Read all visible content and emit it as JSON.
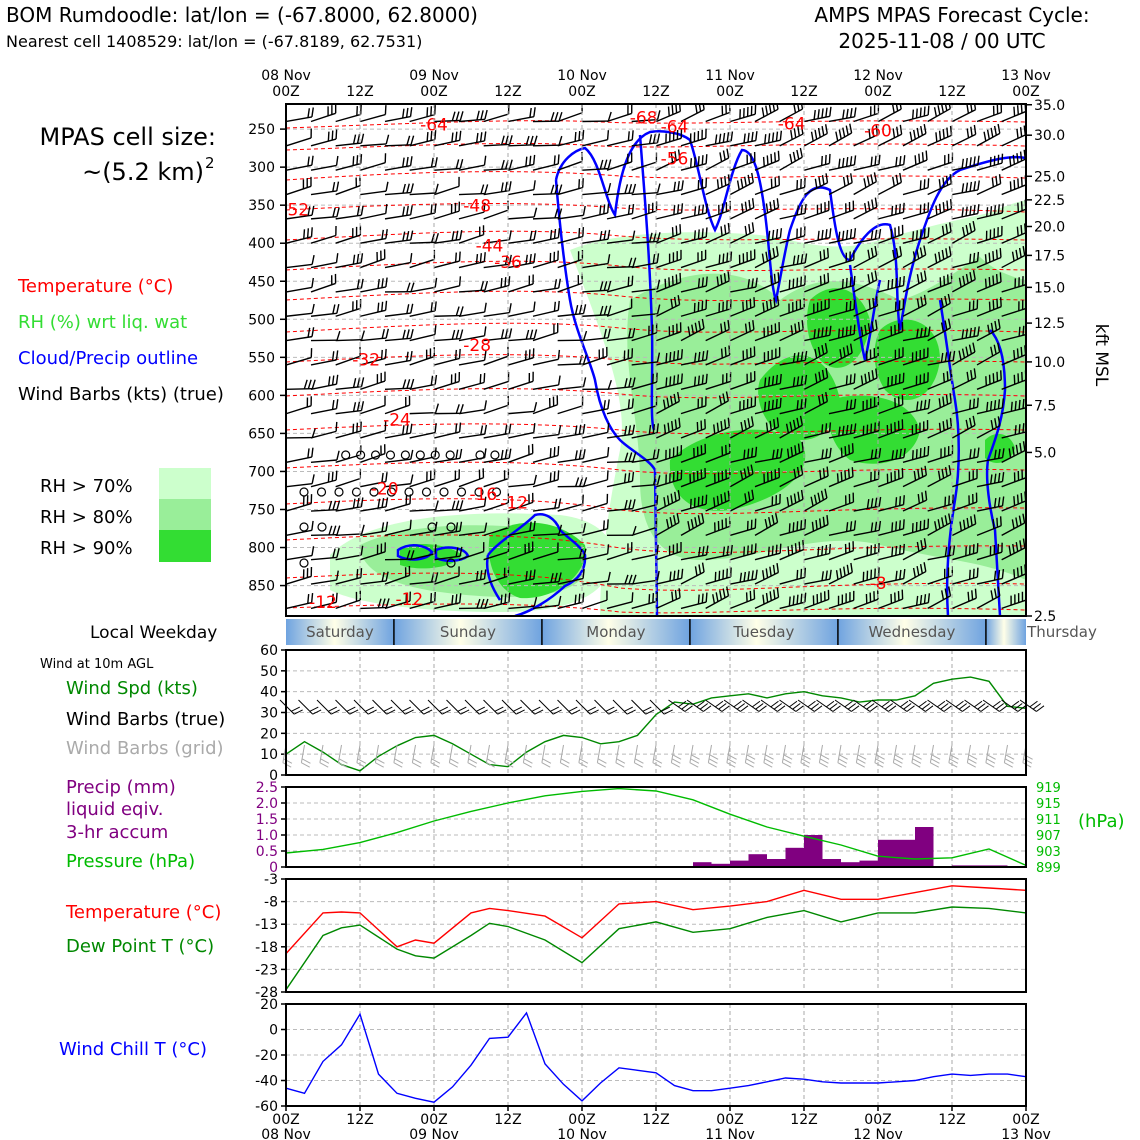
{
  "header": {
    "station_line": "BOM Rumdoodle: lat/lon = (-67.8000, 62.8000)",
    "cell_line": "Nearest cell 1408529: lat/lon = (-67.8189, 62.7531)",
    "cycle_title_1": "AMPS MPAS Forecast Cycle:",
    "cycle_title_2": "2025-11-08 / 00 UTC"
  },
  "cell_size": {
    "line1": "MPAS cell size:",
    "line2": "~(5.2 km)",
    "superscript": "2"
  },
  "upper_legend": {
    "temperature": "Temperature (°C)",
    "rh": "RH (%) wrt liq. wat",
    "cloud": "Cloud/Precip outline",
    "barbs": "Wind Barbs (kts) (true)",
    "rh_levels": [
      "RH > 70%",
      "RH > 80%",
      "RH > 90%"
    ]
  },
  "colors": {
    "temperature": "#ff0000",
    "rh_label": "#33dd33",
    "cloud": "#0000ff",
    "rh70": "#ccffcc",
    "rh80": "#99ee99",
    "rh90": "#33dd33",
    "wind_speed": "#008800",
    "precip": "#800080",
    "pressure": "#00bb00",
    "dewpoint": "#008800",
    "wind_chill": "#0000ff",
    "grid_barb": "#aaaaaa"
  },
  "time_axis": {
    "top_dates": [
      "08 Nov",
      "",
      "09 Nov",
      "",
      "10 Nov",
      "",
      "11 Nov",
      "",
      "12 Nov",
      "",
      "13 Nov"
    ],
    "top_hours": [
      "00Z",
      "12Z",
      "00Z",
      "12Z",
      "00Z",
      "12Z",
      "00Z",
      "12Z",
      "00Z",
      "12Z",
      "00Z"
    ],
    "bottom_hours": [
      "00Z",
      "12Z",
      "00Z",
      "12Z",
      "00Z",
      "12Z",
      "00Z",
      "12Z",
      "00Z",
      "12Z",
      "00Z"
    ],
    "bottom_dates": [
      "08 Nov",
      "",
      "09 Nov",
      "",
      "10 Nov",
      "",
      "11 Nov",
      "",
      "12 Nov",
      "",
      "13 Nov"
    ]
  },
  "weekday_strip": {
    "label": "Local Weekday",
    "days": [
      "Saturday",
      "Sunday",
      "Monday",
      "Tuesday",
      "Wednesday",
      "Thursday"
    ]
  },
  "surface_wind_legend": {
    "title": "Wind at 10m AGL",
    "speed": "Wind Spd (kts)",
    "barbs_true": "Wind Barbs (true)",
    "barbs_grid": "Wind Barbs (grid)"
  },
  "precip_legend": {
    "line1": "Precip (mm)",
    "line2": "liquid eqiv.",
    "line3": "3-hr accum",
    "pressure": "Pressure (hPa)",
    "right_unit": "(hPa)"
  },
  "temp_legend": {
    "temperature": "Temperature (°C)",
    "dewpoint": "Dew Point T (°C)"
  },
  "chill_legend": {
    "wind_chill": "Wind Chill T (°C)"
  },
  "chart_data": [
    {
      "type": "heatmap",
      "panel": "upper-air time-height cross section",
      "x_hours": [
        0,
        120
      ],
      "pressure_ticks": [
        "250",
        "300",
        "350",
        "400",
        "450",
        "500",
        "550",
        "600",
        "650",
        "700",
        "750",
        "800",
        "850"
      ],
      "pressure_values": [
        250,
        300,
        350,
        400,
        450,
        500,
        550,
        600,
        650,
        700,
        750,
        800,
        850
      ],
      "ylim_hpa": [
        890,
        217
      ],
      "right_axis_label": "kft MSL",
      "kft_ticks": [
        "35.0",
        "30.0",
        "25.0",
        "22.5",
        "20.0",
        "17.5",
        "15.0",
        "12.5",
        "10.0",
        "7.5",
        "5.0",
        "2.5"
      ],
      "kft_hpa": [
        218,
        258,
        312,
        343,
        378,
        416,
        458,
        505,
        556,
        613,
        675,
        890
      ],
      "temperature_labels": [
        {
          "text": "-64",
          "hour": 24,
          "hpa": 245
        },
        {
          "text": "-68",
          "hour": 58,
          "hpa": 236
        },
        {
          "text": "-64",
          "hour": 63,
          "hpa": 248
        },
        {
          "text": "-64",
          "hour": 82,
          "hpa": 244
        },
        {
          "text": "-60",
          "hour": 96,
          "hpa": 253
        },
        {
          "text": "-56",
          "hour": 63,
          "hpa": 290
        },
        {
          "text": "-52",
          "hour": 1.5,
          "hpa": 357
        },
        {
          "text": "-48",
          "hour": 31,
          "hpa": 352
        },
        {
          "text": "-44",
          "hour": 33,
          "hpa": 404
        },
        {
          "text": "-36",
          "hour": 36,
          "hpa": 426
        },
        {
          "text": "-32",
          "hour": 13,
          "hpa": 554
        },
        {
          "text": "-28",
          "hour": 31,
          "hpa": 535
        },
        {
          "text": "-24",
          "hour": 18,
          "hpa": 633
        },
        {
          "text": "-20",
          "hour": 16,
          "hpa": 724
        },
        {
          "text": "-16",
          "hour": 32,
          "hpa": 731
        },
        {
          "text": "-12",
          "hour": 37,
          "hpa": 742
        },
        {
          "text": "-12",
          "hour": 6,
          "hpa": 873
        },
        {
          "text": "-12",
          "hour": 20,
          "hpa": 869
        },
        {
          "text": "-8",
          "hour": 96,
          "hpa": 848
        }
      ]
    },
    {
      "type": "line",
      "panel": "surface wind speed",
      "x_hours": [
        0,
        120
      ],
      "ylim": [
        0,
        60
      ],
      "y_ticks": [
        "0",
        "10",
        "20",
        "30",
        "40",
        "50",
        "60"
      ],
      "series": [
        {
          "name": "Wind Spd (kts)",
          "x": [
            0,
            3,
            6,
            9,
            12,
            15,
            18,
            21,
            24,
            27,
            30,
            33,
            36,
            39,
            42,
            45,
            48,
            51,
            54,
            57,
            60,
            63,
            66,
            69,
            72,
            75,
            78,
            81,
            84,
            87,
            90,
            93,
            96,
            99,
            102,
            105,
            108,
            111,
            114,
            117,
            120
          ],
          "values": [
            10,
            16,
            11,
            5,
            2,
            9,
            14,
            18,
            19,
            15,
            10,
            5,
            4,
            11,
            16,
            19,
            18,
            15,
            16,
            19,
            29,
            35,
            34,
            37,
            38,
            39,
            37,
            39,
            40,
            38,
            37,
            35,
            36,
            36,
            38,
            44,
            46,
            47,
            45,
            33,
            32
          ]
        }
      ]
    },
    {
      "type": "bar",
      "panel": "3-hr precipitation and pressure",
      "x_hours": [
        0,
        120
      ],
      "ylim_precip": [
        0,
        2.5
      ],
      "precip_ticks": [
        "0",
        "0.5",
        "1.0",
        "1.5",
        "2.0",
        "2.5"
      ],
      "pressure_ticks": [
        "899",
        "903",
        "907",
        "911",
        "915",
        "919"
      ],
      "ylim_pressure": [
        899,
        919
      ],
      "precip_bars": [
        {
          "hour_start": 66,
          "value": 0.15
        },
        {
          "hour_start": 69,
          "value": 0.1
        },
        {
          "hour_start": 72,
          "value": 0.2
        },
        {
          "hour_start": 75,
          "value": 0.4
        },
        {
          "hour_start": 78,
          "value": 0.25
        },
        {
          "hour_start": 81,
          "value": 0.6
        },
        {
          "hour_start": 84,
          "value": 1.0
        },
        {
          "hour_start": 87,
          "value": 0.25
        },
        {
          "hour_start": 90,
          "value": 0.15
        },
        {
          "hour_start": 93,
          "value": 0.2
        },
        {
          "hour_start": 96,
          "value": 0.85
        },
        {
          "hour_start": 99,
          "value": 0.85
        },
        {
          "hour_start": 102,
          "value": 1.25
        },
        {
          "hour_start": 108,
          "value": 0.05
        },
        {
          "hour_start": 111,
          "value": 0.05
        },
        {
          "hour_start": 114,
          "value": 0.05
        }
      ],
      "pressure_series": {
        "name": "Pressure (hPa)",
        "x": [
          0,
          6,
          12,
          18,
          24,
          30,
          36,
          42,
          48,
          54,
          60,
          66,
          72,
          78,
          84,
          90,
          96,
          102,
          108,
          114,
          120
        ],
        "values": [
          902.5,
          903.4,
          905.1,
          907.6,
          910.5,
          912.9,
          915.0,
          916.8,
          917.9,
          918.6,
          918.0,
          915.8,
          912.2,
          909.0,
          906.7,
          904.5,
          901.7,
          901.0,
          901.3,
          903.5,
          899.4
        ]
      }
    },
    {
      "type": "line",
      "panel": "temperature and dew point",
      "x_hours": [
        0,
        120
      ],
      "ylim": [
        -28,
        -3
      ],
      "y_ticks": [
        "-3",
        "-8",
        "-13",
        "-18",
        "-23",
        "-28"
      ],
      "series": [
        {
          "name": "Temperature (°C)",
          "x": [
            0,
            6,
            9,
            12,
            18,
            21,
            24,
            30,
            33,
            36,
            42,
            48,
            54,
            60,
            66,
            72,
            78,
            84,
            90,
            96,
            102,
            108,
            114,
            120
          ],
          "values": [
            -19.5,
            -10.5,
            -10.3,
            -10.5,
            -18.0,
            -16.5,
            -17.2,
            -10.5,
            -9.5,
            -10.0,
            -11.2,
            -16.0,
            -8.5,
            -8.0,
            -9.8,
            -9.0,
            -8.0,
            -5.5,
            -7.5,
            -7.5,
            -6.0,
            -4.5,
            -5.0,
            -5.5
          ]
        },
        {
          "name": "Dew Point T (°C)",
          "x": [
            0,
            6,
            9,
            12,
            18,
            21,
            24,
            30,
            33,
            36,
            42,
            48,
            54,
            60,
            66,
            72,
            78,
            84,
            90,
            96,
            102,
            108,
            114,
            120
          ],
          "values": [
            -27.5,
            -15.5,
            -13.8,
            -13.2,
            -18.5,
            -20.0,
            -20.5,
            -15.5,
            -12.8,
            -13.5,
            -16.5,
            -21.5,
            -14.0,
            -12.5,
            -14.8,
            -14.0,
            -11.5,
            -10.0,
            -12.5,
            -10.5,
            -10.5,
            -9.2,
            -9.5,
            -10.5
          ]
        }
      ]
    },
    {
      "type": "line",
      "panel": "wind chill",
      "x_hours": [
        0,
        120
      ],
      "ylim": [
        -60,
        20
      ],
      "y_ticks": [
        "20",
        "0",
        "-20",
        "-40",
        "-60"
      ],
      "series": [
        {
          "name": "Wind Chill T (°C)",
          "x": [
            0,
            3,
            6,
            9,
            12,
            15,
            18,
            21,
            24,
            27,
            30,
            33,
            36,
            39,
            42,
            45,
            48,
            51,
            54,
            57,
            60,
            63,
            66,
            69,
            72,
            75,
            78,
            81,
            84,
            87,
            90,
            93,
            96,
            99,
            102,
            105,
            108,
            111,
            114,
            117,
            120
          ],
          "values": [
            -46,
            -50,
            -25,
            -12,
            12,
            -35,
            -50,
            -54,
            -57,
            -45,
            -28,
            -7,
            -6,
            13,
            -27,
            -43,
            -56,
            -42,
            -30,
            -32,
            -34,
            -44,
            -48,
            -48,
            -46,
            -44,
            -41,
            -38,
            -39,
            -41,
            -42,
            -42,
            -42,
            -41,
            -40,
            -37,
            -35,
            -36,
            -35,
            -35,
            -37
          ]
        }
      ]
    }
  ]
}
